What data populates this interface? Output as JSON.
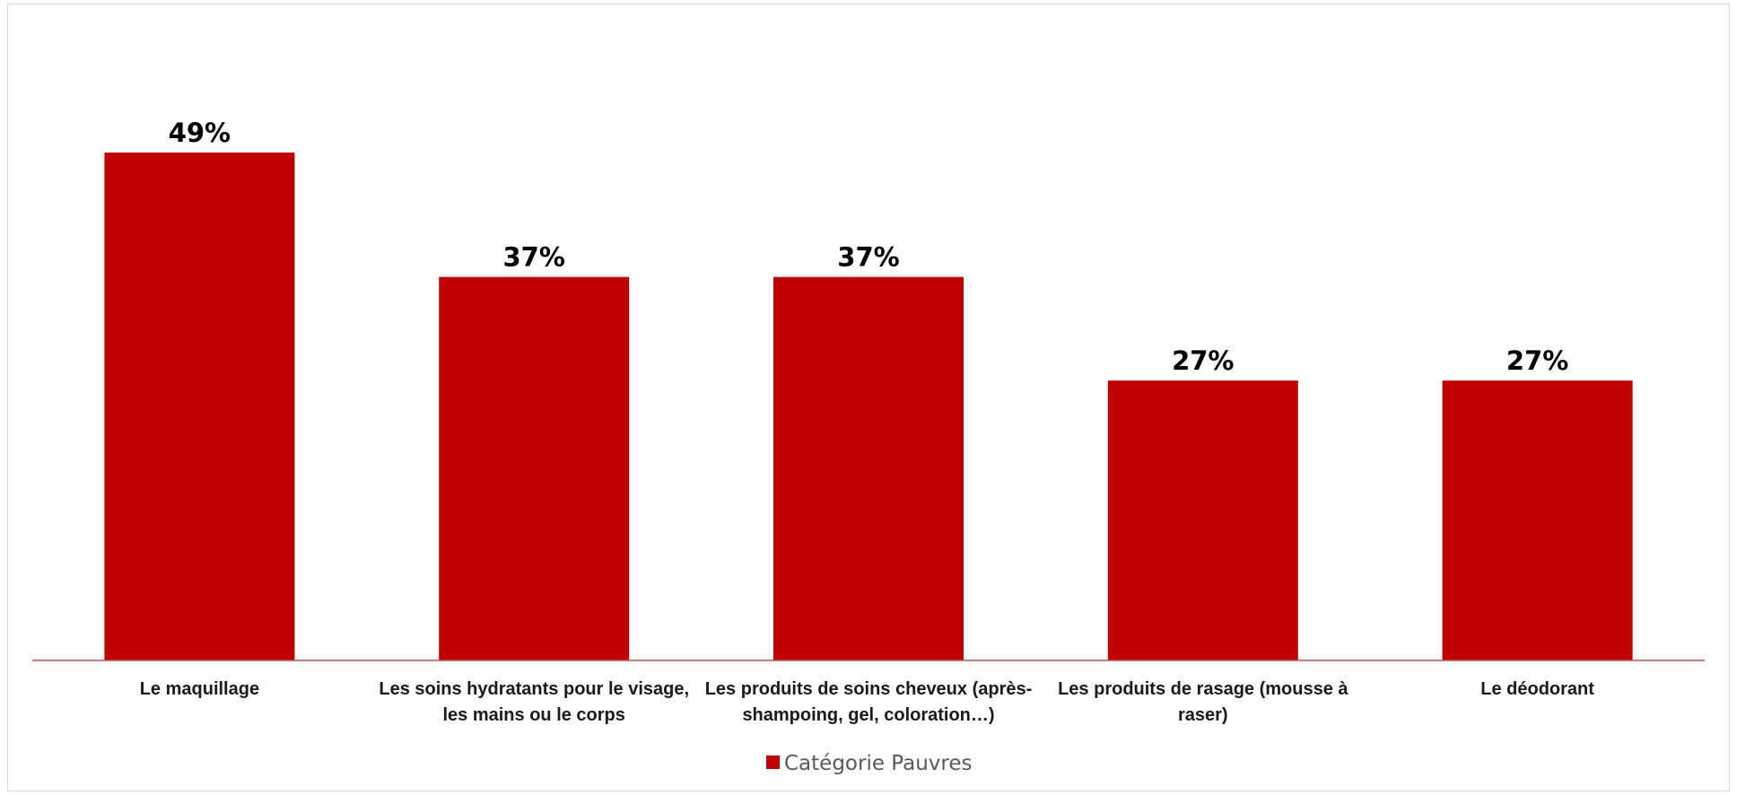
{
  "chart_data": {
    "type": "bar",
    "categories": [
      [
        "Le maquillage"
      ],
      [
        "Les soins hydratants pour le visage,",
        "les mains ou le corps"
      ],
      [
        "Les produits de soins cheveux (après-",
        "shampoing, gel, coloration…)"
      ],
      [
        "Les produits de rasage (mousse à",
        "raser)"
      ],
      [
        "Le déodorant"
      ]
    ],
    "series": [
      {
        "name": "Catégorie Pauvres",
        "color": "#c00000",
        "values": [
          49,
          37,
          37,
          27,
          27
        ],
        "labels": [
          "49%",
          "37%",
          "37%",
          "27%",
          "27%"
        ]
      }
    ],
    "ylim": [
      0,
      55
    ],
    "grid": false,
    "legend": "bottom-center",
    "axis_color": "#c0504d"
  }
}
